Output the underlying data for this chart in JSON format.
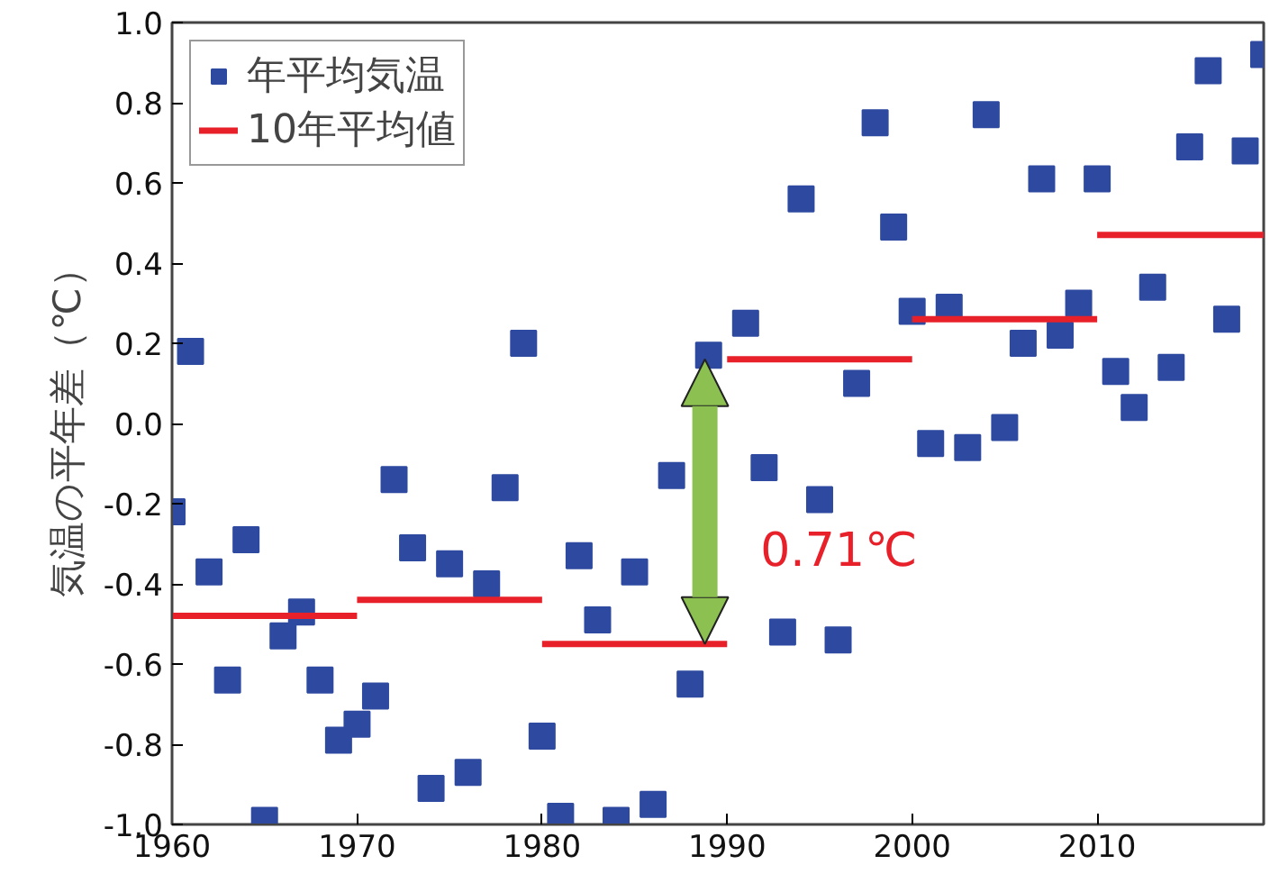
{
  "chart_data": {
    "type": "scatter",
    "ylabel": "気温の平年差（℃）",
    "x": [
      1960,
      1961,
      1962,
      1963,
      1964,
      1965,
      1966,
      1967,
      1968,
      1969,
      1970,
      1971,
      1972,
      1973,
      1974,
      1975,
      1976,
      1977,
      1978,
      1979,
      1980,
      1981,
      1982,
      1983,
      1984,
      1985,
      1986,
      1987,
      1988,
      1989,
      1991,
      1992,
      1993,
      1994,
      1995,
      1996,
      1997,
      1998,
      1999,
      2000,
      2001,
      2002,
      2003,
      2004,
      2005,
      2006,
      2007,
      2008,
      2009,
      2010,
      2011,
      2012,
      2013,
      2014,
      2015,
      2016,
      2017,
      2018,
      2019
    ],
    "series": [
      {
        "name": "年平均気温",
        "marker": "square",
        "color": "#2e4aa0",
        "values": [
          -0.22,
          0.18,
          -0.37,
          -0.64,
          -0.29,
          -0.99,
          -0.53,
          -0.47,
          -0.64,
          -0.79,
          -0.75,
          -0.68,
          -0.14,
          -0.31,
          -0.91,
          -0.35,
          -0.87,
          -0.4,
          -0.16,
          0.2,
          -0.78,
          -0.98,
          -0.33,
          -0.49,
          -0.99,
          -0.37,
          -0.95,
          -0.13,
          -0.65,
          0.17,
          0.25,
          -0.11,
          -0.52,
          0.56,
          -0.19,
          -0.54,
          0.1,
          0.75,
          0.49,
          0.28,
          -0.05,
          0.29,
          -0.06,
          0.77,
          -0.01,
          0.2,
          0.61,
          0.22,
          0.3,
          0.61,
          0.13,
          0.04,
          0.34,
          0.14,
          0.69,
          0.88,
          0.26,
          0.68,
          0.92
        ]
      },
      {
        "name": "10年平均値",
        "type": "line",
        "marker": "none",
        "color": "#e8202a",
        "x": [
          1960,
          1970,
          null,
          1970,
          1980,
          null,
          1980,
          1990,
          null,
          1990,
          2000,
          null,
          2000,
          2010,
          null,
          2010,
          2019
        ],
        "values": [
          -0.48,
          -0.48,
          null,
          -0.44,
          -0.44,
          null,
          -0.55,
          -0.55,
          null,
          0.16,
          0.16,
          null,
          0.26,
          0.26,
          null,
          0.47,
          0.47
        ]
      }
    ],
    "annotations": [
      "0.71℃"
    ],
    "xlim": [
      1960,
      2019
    ],
    "xticks": [
      1960,
      1970,
      1980,
      1990,
      2000,
      2010
    ],
    "ylim": [
      -1.0,
      1.0
    ],
    "yticks": [
      {
        "value": -1.0,
        "label": "-1.0"
      },
      {
        "value": -0.8,
        "label": "-0.8"
      },
      {
        "value": -0.6,
        "label": "-0.6"
      },
      {
        "value": -0.4,
        "label": "-0.4"
      },
      {
        "value": -0.2,
        "label": "-0.2"
      },
      {
        "value": 0.0,
        "label": "0.0"
      },
      {
        "value": 0.2,
        "label": "0.2"
      },
      {
        "value": 0.4,
        "label": "0.4"
      },
      {
        "value": 0.6,
        "label": "0.6"
      },
      {
        "value": 0.8,
        "label": "0.8"
      },
      {
        "value": 1.0,
        "label": "1.0"
      }
    ],
    "grid": false,
    "legend": "top left"
  }
}
